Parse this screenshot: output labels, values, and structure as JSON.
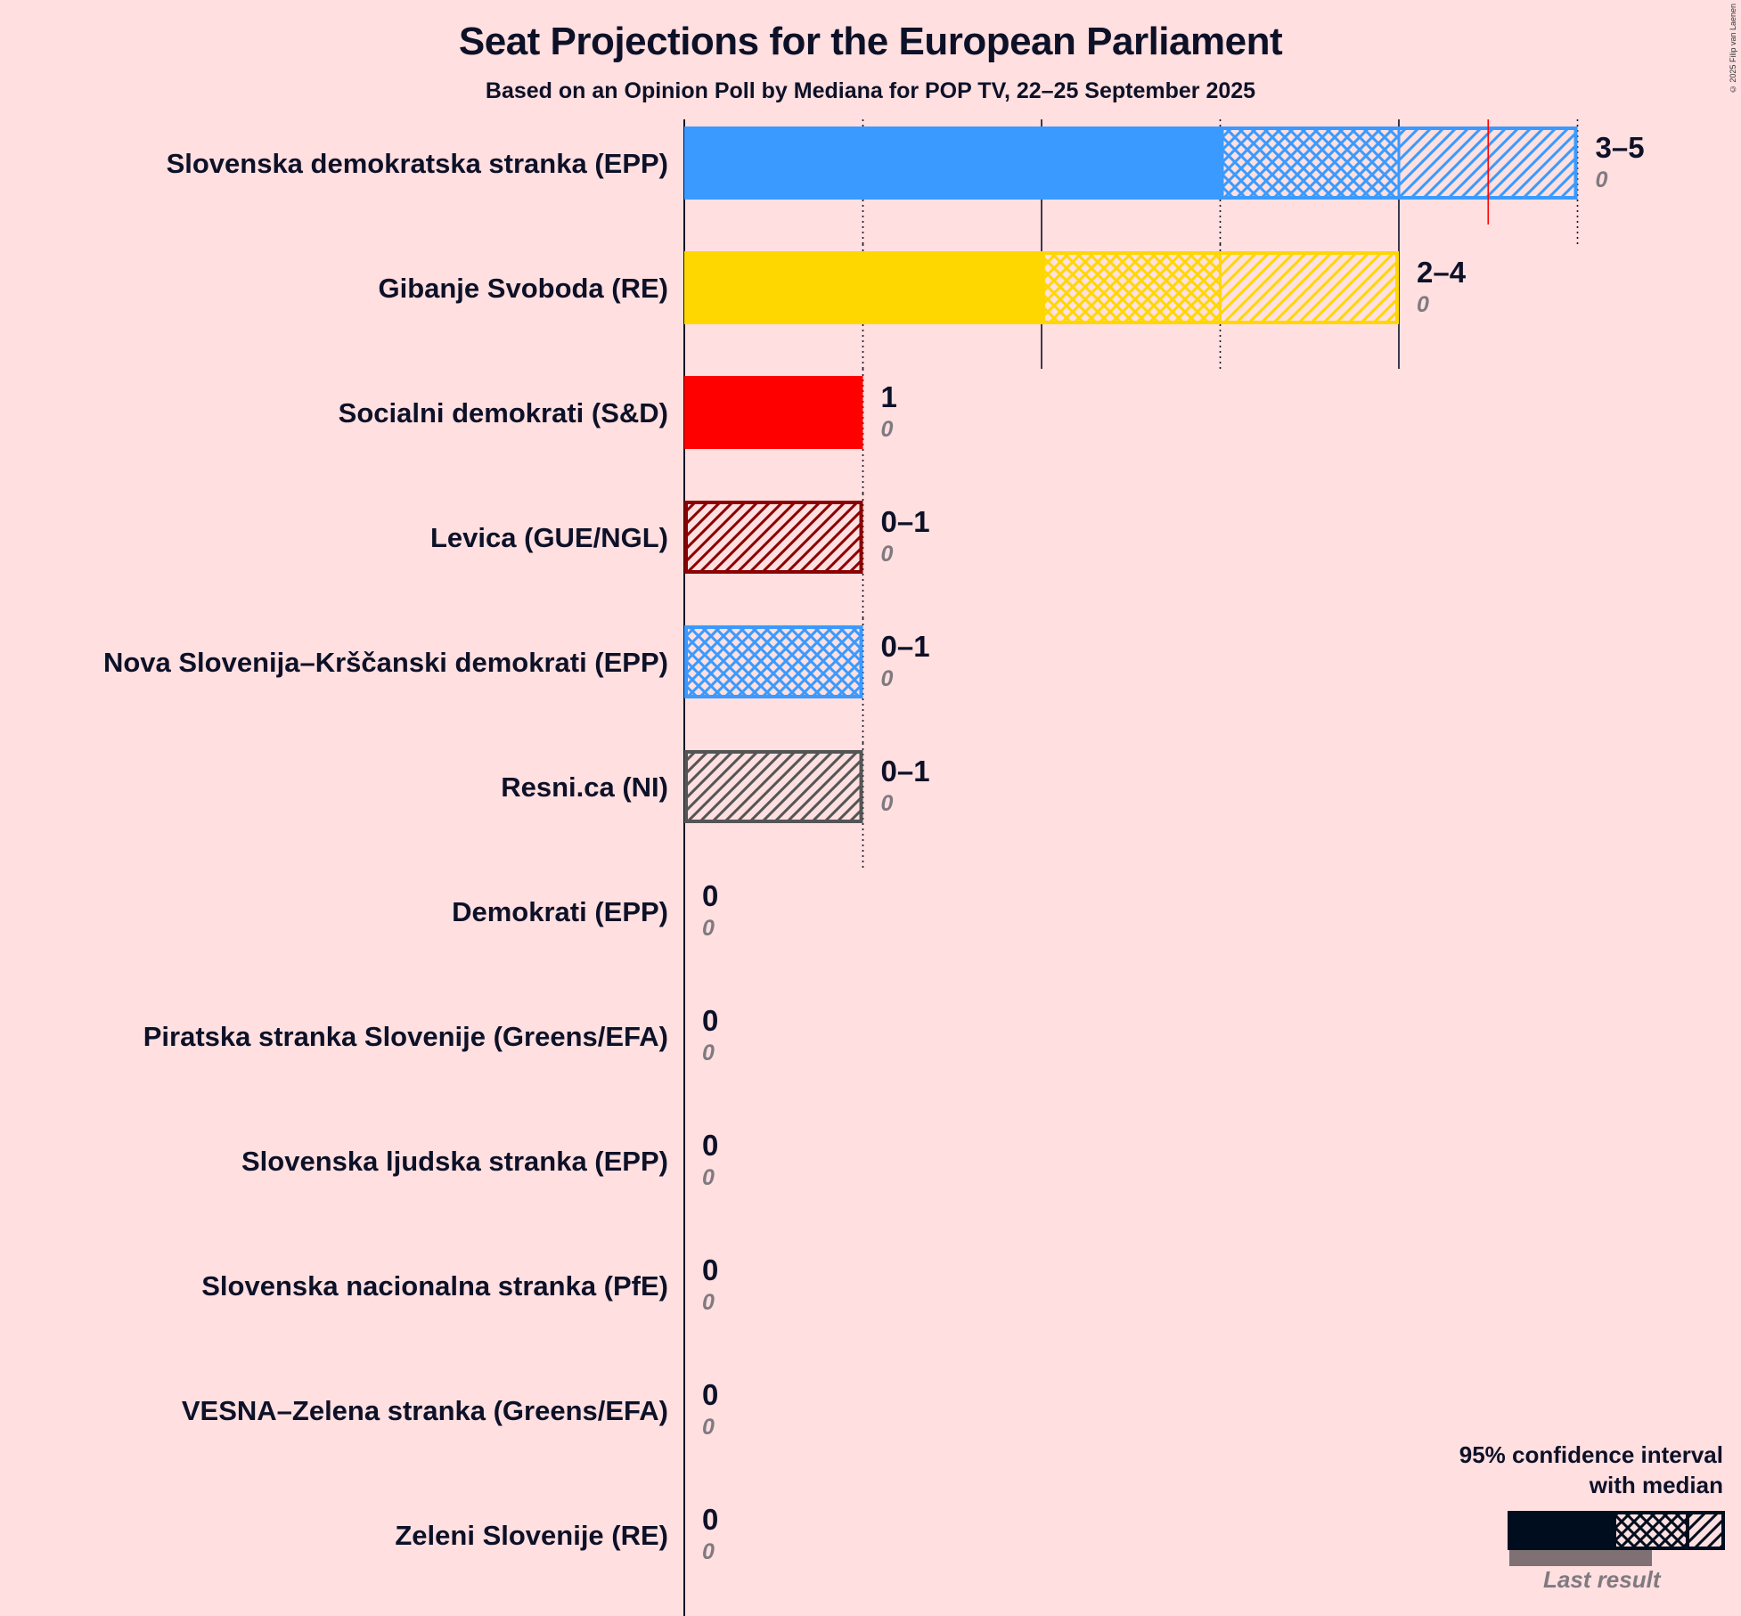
{
  "header": {
    "title": "Seat Projections for the European Parliament",
    "subtitle": "Based on an Opinion Poll by Mediana for POP TV, 22–25 September 2025",
    "copyright": "© 2025 Filip van Laenen"
  },
  "legend": {
    "title_line1": "95% confidence interval",
    "title_line2": "with median",
    "last_result": "Last result",
    "color": "#000d1e",
    "last_color": "#7f7073"
  },
  "chart_data": {
    "type": "bar",
    "orientation": "horizontal",
    "title": "Seat Projections for the European Parliament",
    "subtitle": "Based on an Opinion Poll by Mediana for POP TV, 22–25 September 2025",
    "xlim": [
      0,
      5
    ],
    "gridlines": [
      1,
      2,
      3,
      4,
      5
    ],
    "majority_marker": 4.5,
    "parties": [
      {
        "name": "Slovenska demokratska stranka (EPP)",
        "low": 3,
        "median": 4,
        "high": 5,
        "range_label": "3–5",
        "last": 0,
        "last_label": "0",
        "color": "#3a9aff"
      },
      {
        "name": "Gibanje Svoboda (RE)",
        "low": 2,
        "median": 3,
        "high": 4,
        "range_label": "2–4",
        "last": 0,
        "last_label": "0",
        "color": "#ffd700"
      },
      {
        "name": "Socialni demokrati (S&D)",
        "low": 1,
        "median": 1,
        "high": 1,
        "range_label": "1",
        "last": 0,
        "last_label": "0",
        "color": "#ff0000"
      },
      {
        "name": "Levica (GUE/NGL)",
        "low": 0,
        "median": 0,
        "high": 1,
        "range_label": "0–1",
        "last": 0,
        "last_label": "0",
        "color": "#8b0000"
      },
      {
        "name": "Nova Slovenija–Krščanski demokrati (EPP)",
        "low": 0,
        "median": 1,
        "high": 1,
        "range_label": "0–1",
        "last": 0,
        "last_label": "0",
        "color": "#3a9aff"
      },
      {
        "name": "Resni.ca (NI)",
        "low": 0,
        "median": 0,
        "high": 1,
        "range_label": "0–1",
        "last": 0,
        "last_label": "0",
        "color": "#555555"
      },
      {
        "name": "Demokrati (EPP)",
        "low": 0,
        "median": 0,
        "high": 0,
        "range_label": "0",
        "last": 0,
        "last_label": "0",
        "color": "#3a9aff"
      },
      {
        "name": "Piratska stranka Slovenije (Greens/EFA)",
        "low": 0,
        "median": 0,
        "high": 0,
        "range_label": "0",
        "last": 0,
        "last_label": "0",
        "color": "#000000"
      },
      {
        "name": "Slovenska ljudska stranka (EPP)",
        "low": 0,
        "median": 0,
        "high": 0,
        "range_label": "0",
        "last": 0,
        "last_label": "0",
        "color": "#3a9aff"
      },
      {
        "name": "Slovenska nacionalna stranka (PfE)",
        "low": 0,
        "median": 0,
        "high": 0,
        "range_label": "0",
        "last": 0,
        "last_label": "0",
        "color": "#000000"
      },
      {
        "name": "VESNA–Zelena stranka (Greens/EFA)",
        "low": 0,
        "median": 0,
        "high": 0,
        "range_label": "0",
        "last": 0,
        "last_label": "0",
        "color": "#00aa00"
      },
      {
        "name": "Zeleni Slovenije (RE)",
        "low": 0,
        "median": 0,
        "high": 0,
        "range_label": "0",
        "last": 0,
        "last_label": "0",
        "color": "#ffd700"
      }
    ]
  }
}
